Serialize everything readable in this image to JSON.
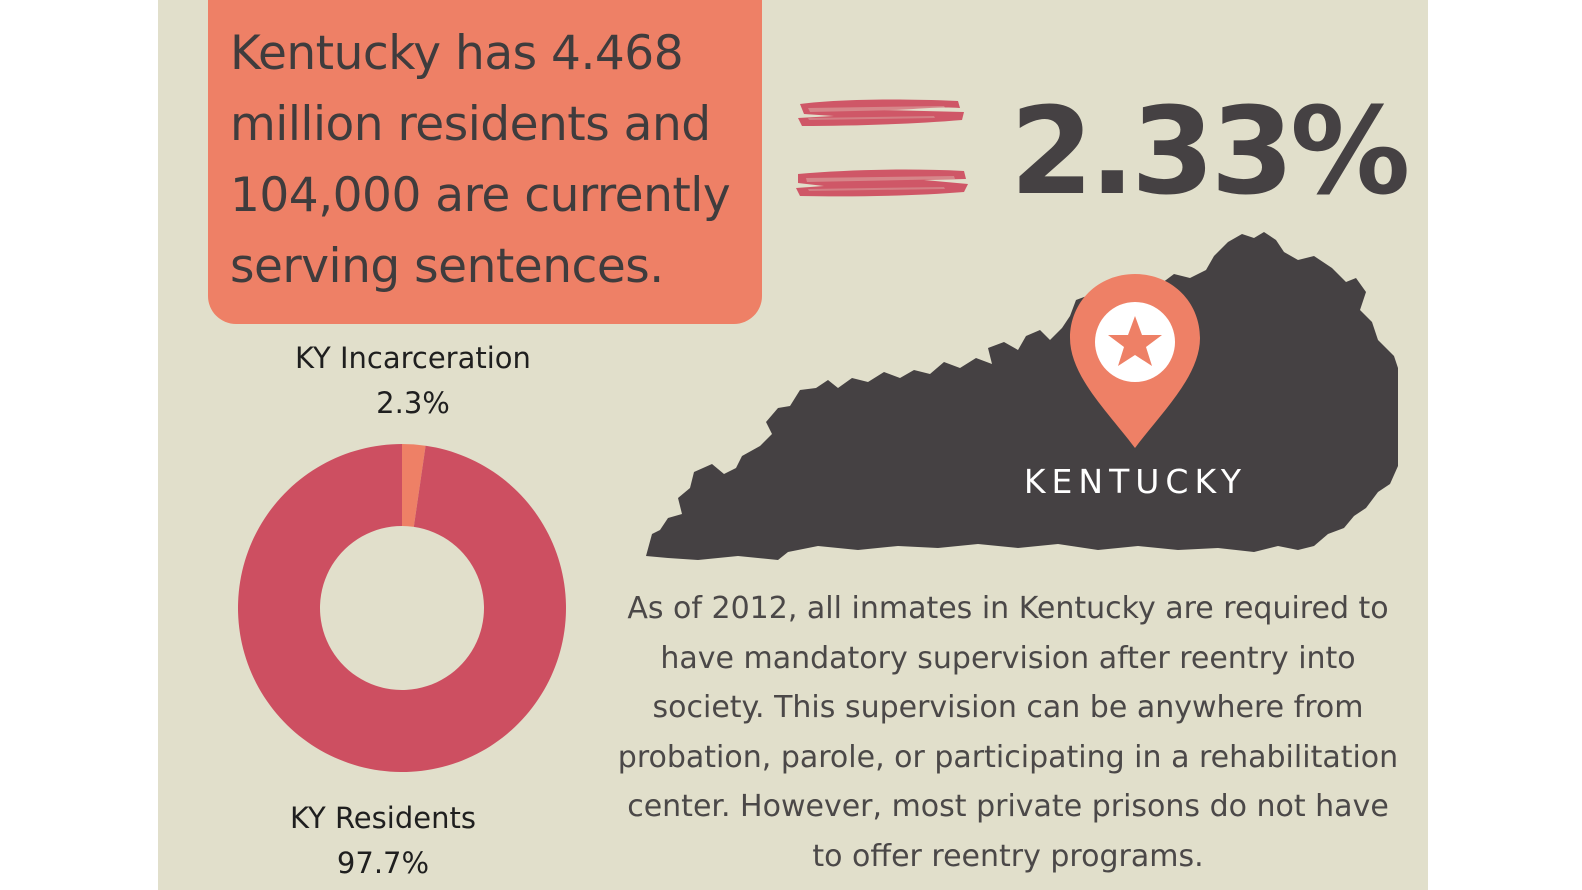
{
  "callout": {
    "text": "Kentucky has 4.468 million residents and 104,000 are currently serving sentences."
  },
  "headline": {
    "equals_icon": "brush-equals-icon",
    "percent": "2.33%"
  },
  "map": {
    "icon": "kentucky-state-map-icon",
    "pin_icon": "location-pin-star-icon",
    "label": "KENTUCKY"
  },
  "colors": {
    "background": "#e1dfcb",
    "callout": "#ee8066",
    "residents": "#cd4f61",
    "incarceration": "#ee8066",
    "map": "#454143"
  },
  "chart_data": {
    "type": "pie",
    "donut": true,
    "categories": [
      "KY Incarceration",
      "KY Residents"
    ],
    "values": [
      2.3,
      97.7
    ],
    "value_labels": [
      "2.3%",
      "97.7%"
    ],
    "colors": [
      "#ee8066",
      "#cd4f61"
    ]
  },
  "note": {
    "text": "As of 2012, all inmates in Kentucky are required to have mandatory supervision after reentry into society. This supervision can be anywhere from probation, parole, or participating in a rehabilitation center. However, most private prisons do not have to offer reentry programs."
  }
}
